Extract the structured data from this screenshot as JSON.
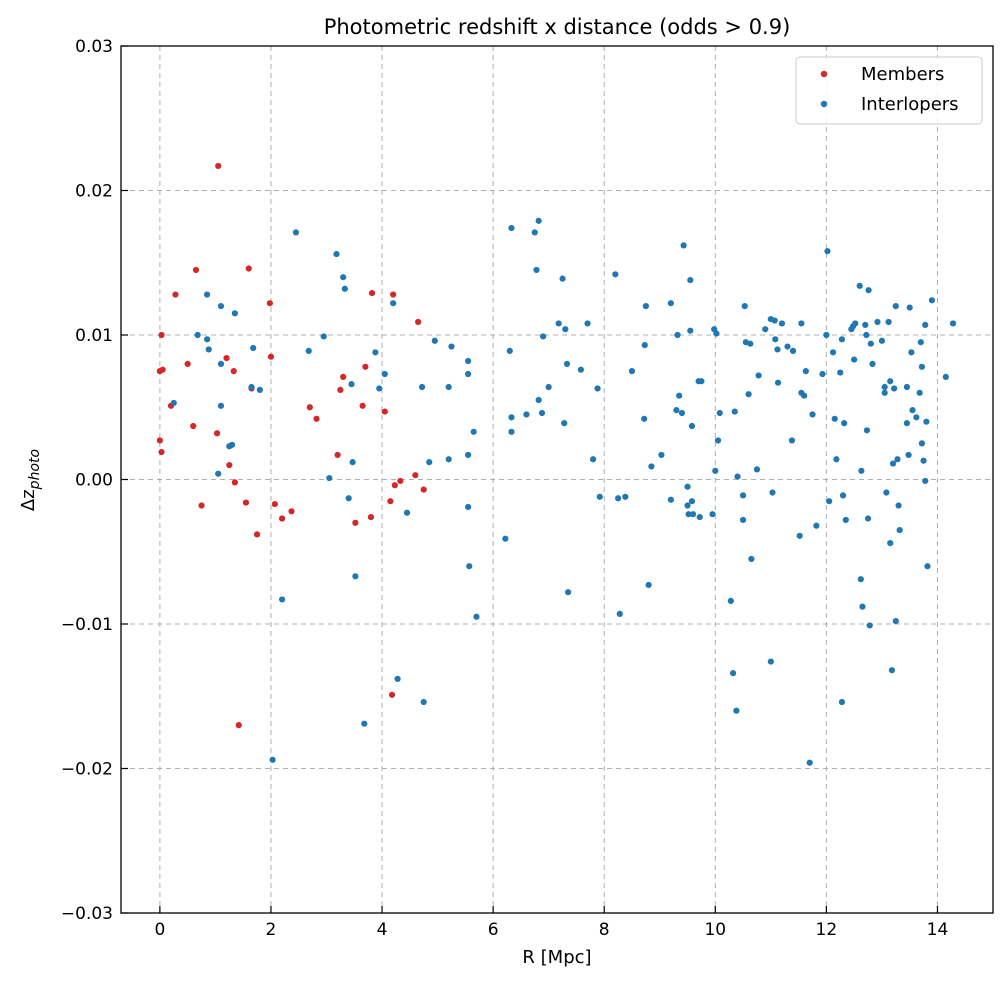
{
  "chart_data": {
    "type": "scatter",
    "title": "Photometric redshift x distance (odds > 0.9)",
    "xlabel": "R [Mpc]",
    "ylabel_main": "Δz",
    "ylabel_sub": "photo",
    "xlim": [
      -0.7,
      15.0
    ],
    "ylim": [
      -0.03,
      0.03
    ],
    "xticks": [
      0,
      2,
      4,
      6,
      8,
      10,
      12,
      14
    ],
    "yticks": [
      -0.03,
      -0.02,
      -0.01,
      0.0,
      0.01,
      0.02,
      0.03
    ],
    "ytick_labels": [
      "−0.03",
      "−0.02",
      "−0.01",
      "0.00",
      "0.01",
      "0.02",
      "0.03"
    ],
    "xtick_labels": [
      "0",
      "2",
      "4",
      "6",
      "8",
      "10",
      "12",
      "14"
    ],
    "grid": true,
    "legend_position": "top-right",
    "series": [
      {
        "name": "Members",
        "color": "#d62728",
        "points": [
          [
            0.03,
            0.01
          ],
          [
            0.0,
            0.0075
          ],
          [
            0.05,
            0.0076
          ],
          [
            0.0,
            0.0027
          ],
          [
            0.03,
            0.0019
          ],
          [
            0.2,
            0.0051
          ],
          [
            0.28,
            0.0128
          ],
          [
            0.5,
            0.008
          ],
          [
            0.65,
            0.0145
          ],
          [
            0.6,
            0.0037
          ],
          [
            0.75,
            -0.0018
          ],
          [
            1.05,
            0.0217
          ],
          [
            1.03,
            0.0032
          ],
          [
            1.2,
            0.0084
          ],
          [
            1.25,
            0.001
          ],
          [
            1.33,
            0.0075
          ],
          [
            1.35,
            -0.0002
          ],
          [
            1.42,
            -0.017
          ],
          [
            1.55,
            -0.0016
          ],
          [
            1.6,
            0.0146
          ],
          [
            1.65,
            0.0063
          ],
          [
            1.75,
            -0.0038
          ],
          [
            1.98,
            0.0122
          ],
          [
            2.0,
            0.0085
          ],
          [
            2.07,
            -0.0017
          ],
          [
            2.2,
            -0.0027
          ],
          [
            2.37,
            -0.0022
          ],
          [
            2.7,
            0.005
          ],
          [
            2.82,
            0.0042
          ],
          [
            3.2,
            0.0017
          ],
          [
            3.25,
            0.0062
          ],
          [
            3.3,
            0.0071
          ],
          [
            3.52,
            -0.003
          ],
          [
            3.65,
            0.0051
          ],
          [
            3.7,
            0.0078
          ],
          [
            3.8,
            -0.0026
          ],
          [
            3.82,
            0.0129
          ],
          [
            4.05,
            0.0047
          ],
          [
            4.15,
            -0.0015
          ],
          [
            4.2,
            0.0128
          ],
          [
            4.23,
            -0.0004
          ],
          [
            4.33,
            -0.0001
          ],
          [
            4.6,
            0.0003
          ],
          [
            4.65,
            0.0109
          ],
          [
            4.75,
            -0.0007
          ],
          [
            4.18,
            -0.0149
          ]
        ]
      },
      {
        "name": "Interlopers",
        "color": "#1f77b4",
        "points": [
          [
            0.25,
            0.0053
          ],
          [
            0.68,
            0.01
          ],
          [
            0.85,
            0.0128
          ],
          [
            0.85,
            0.0097
          ],
          [
            0.88,
            0.009
          ],
          [
            1.05,
            0.0004
          ],
          [
            1.1,
            0.012
          ],
          [
            1.1,
            0.008
          ],
          [
            1.1,
            0.0051
          ],
          [
            1.25,
            0.0023
          ],
          [
            1.3,
            0.0024
          ],
          [
            1.35,
            0.0115
          ],
          [
            1.65,
            0.0064
          ],
          [
            1.68,
            0.0091
          ],
          [
            1.8,
            0.0062
          ],
          [
            2.03,
            -0.0194
          ],
          [
            2.2,
            -0.0083
          ],
          [
            2.45,
            0.0171
          ],
          [
            2.68,
            0.0089
          ],
          [
            2.95,
            0.0099
          ],
          [
            3.05,
            0.0001
          ],
          [
            3.18,
            0.0156
          ],
          [
            3.3,
            0.014
          ],
          [
            3.33,
            0.0132
          ],
          [
            3.4,
            -0.0013
          ],
          [
            3.45,
            0.0066
          ],
          [
            3.47,
            0.0012
          ],
          [
            3.52,
            -0.0067
          ],
          [
            3.68,
            -0.0169
          ],
          [
            3.88,
            0.0088
          ],
          [
            3.95,
            0.0063
          ],
          [
            4.05,
            0.0073
          ],
          [
            4.2,
            0.0122
          ],
          [
            4.28,
            -0.0138
          ],
          [
            4.45,
            -0.0023
          ],
          [
            4.72,
            0.0064
          ],
          [
            4.75,
            -0.0154
          ],
          [
            4.85,
            0.0012
          ],
          [
            4.95,
            0.0096
          ],
          [
            5.2,
            0.0064
          ],
          [
            5.2,
            0.0014
          ],
          [
            5.25,
            0.0092
          ],
          [
            5.55,
            0.0082
          ],
          [
            5.55,
            0.0073
          ],
          [
            5.55,
            0.0017
          ],
          [
            5.55,
            -0.0019
          ],
          [
            5.57,
            -0.006
          ],
          [
            5.65,
            0.0033
          ],
          [
            5.7,
            -0.0095
          ],
          [
            6.22,
            -0.0041
          ],
          [
            6.3,
            0.0089
          ],
          [
            6.33,
            0.0174
          ],
          [
            6.33,
            0.0043
          ],
          [
            6.33,
            0.0033
          ],
          [
            6.6,
            0.0045
          ],
          [
            6.75,
            0.0171
          ],
          [
            6.78,
            0.0145
          ],
          [
            6.82,
            0.0179
          ],
          [
            6.82,
            0.0055
          ],
          [
            6.88,
            0.0046
          ],
          [
            6.9,
            0.0099
          ],
          [
            7.0,
            0.0064
          ],
          [
            7.18,
            0.0108
          ],
          [
            7.25,
            0.0139
          ],
          [
            7.28,
            0.0039
          ],
          [
            7.3,
            0.0104
          ],
          [
            7.33,
            0.008
          ],
          [
            7.35,
            -0.0078
          ],
          [
            7.58,
            0.0076
          ],
          [
            7.7,
            0.0108
          ],
          [
            7.8,
            0.0014
          ],
          [
            7.88,
            0.0063
          ],
          [
            7.92,
            -0.0012
          ],
          [
            8.2,
            0.0142
          ],
          [
            8.25,
            -0.0013
          ],
          [
            8.28,
            -0.0093
          ],
          [
            8.38,
            -0.0012
          ],
          [
            8.5,
            0.0075
          ],
          [
            8.72,
            0.0042
          ],
          [
            8.73,
            0.0093
          ],
          [
            8.75,
            0.012
          ],
          [
            8.8,
            -0.0073
          ],
          [
            8.85,
            0.0009
          ],
          [
            9.03,
            0.0017
          ],
          [
            9.2,
            0.0122
          ],
          [
            9.2,
            -0.0014
          ],
          [
            9.3,
            0.0048
          ],
          [
            9.32,
            0.01
          ],
          [
            9.35,
            0.0058
          ],
          [
            9.4,
            0.0046
          ],
          [
            9.43,
            0.0162
          ],
          [
            9.5,
            -0.0018
          ],
          [
            9.5,
            -0.0005
          ],
          [
            9.52,
            -0.0024
          ],
          [
            9.55,
            0.0138
          ],
          [
            9.55,
            0.0103
          ],
          [
            9.58,
            0.0037
          ],
          [
            9.58,
            -0.0015
          ],
          [
            9.6,
            -0.0024
          ],
          [
            9.7,
            0.0068
          ],
          [
            9.72,
            -0.0026
          ],
          [
            9.75,
            0.0068
          ],
          [
            9.95,
            -0.0024
          ],
          [
            9.98,
            0.0104
          ],
          [
            10.0,
            0.0006
          ],
          [
            10.02,
            0.0101
          ],
          [
            10.05,
            0.0027
          ],
          [
            10.08,
            0.0046
          ],
          [
            10.28,
            -0.0084
          ],
          [
            10.32,
            -0.0134
          ],
          [
            10.35,
            0.0047
          ],
          [
            10.38,
            -0.016
          ],
          [
            10.4,
            0.0002
          ],
          [
            10.5,
            -0.0011
          ],
          [
            10.5,
            -0.0028
          ],
          [
            10.53,
            0.012
          ],
          [
            10.55,
            0.0095
          ],
          [
            10.6,
            0.0059
          ],
          [
            10.63,
            0.0094
          ],
          [
            10.65,
            -0.0055
          ],
          [
            10.75,
            0.0007
          ],
          [
            10.78,
            0.0072
          ],
          [
            10.9,
            0.0104
          ],
          [
            11.0,
            0.0111
          ],
          [
            11.0,
            -0.0126
          ],
          [
            11.03,
            -0.0009
          ],
          [
            11.07,
            0.011
          ],
          [
            11.08,
            0.0097
          ],
          [
            11.12,
            0.009
          ],
          [
            11.13,
            0.0067
          ],
          [
            11.2,
            0.0108
          ],
          [
            11.3,
            0.0092
          ],
          [
            11.38,
            0.0027
          ],
          [
            11.4,
            0.0089
          ],
          [
            11.52,
            -0.0039
          ],
          [
            11.55,
            0.0108
          ],
          [
            11.55,
            0.006
          ],
          [
            11.6,
            0.0058
          ],
          [
            11.63,
            0.0075
          ],
          [
            11.7,
            -0.0196
          ],
          [
            11.75,
            0.0045
          ],
          [
            11.82,
            -0.0032
          ],
          [
            11.93,
            0.0073
          ],
          [
            12.0,
            0.01
          ],
          [
            12.02,
            0.0158
          ],
          [
            12.05,
            -0.0015
          ],
          [
            12.12,
            0.0088
          ],
          [
            12.15,
            0.0042
          ],
          [
            12.18,
            0.0014
          ],
          [
            12.25,
            0.0074
          ],
          [
            12.28,
            0.0097
          ],
          [
            12.28,
            -0.0154
          ],
          [
            12.3,
            -0.0011
          ],
          [
            12.32,
            0.0039
          ],
          [
            12.35,
            -0.0028
          ],
          [
            12.45,
            0.0104
          ],
          [
            12.48,
            0.0106
          ],
          [
            12.5,
            0.0083
          ],
          [
            12.52,
            0.0108
          ],
          [
            12.6,
            0.0134
          ],
          [
            12.62,
            -0.0069
          ],
          [
            12.63,
            0.0006
          ],
          [
            12.65,
            -0.0088
          ],
          [
            12.7,
            0.0107
          ],
          [
            12.72,
            0.01
          ],
          [
            12.73,
            0.0034
          ],
          [
            12.75,
            -0.0027
          ],
          [
            12.76,
            0.0131
          ],
          [
            12.78,
            -0.0101
          ],
          [
            12.8,
            0.0094
          ],
          [
            12.83,
            0.008
          ],
          [
            12.92,
            0.0109
          ],
          [
            13.0,
            0.0096
          ],
          [
            13.05,
            0.0064
          ],
          [
            13.05,
            0.006
          ],
          [
            13.08,
            -0.0009
          ],
          [
            13.12,
            0.0109
          ],
          [
            13.15,
            -0.0044
          ],
          [
            13.15,
            0.0068
          ],
          [
            13.18,
            -0.0132
          ],
          [
            13.2,
            0.0011
          ],
          [
            13.22,
            0.0063
          ],
          [
            13.25,
            0.012
          ],
          [
            13.25,
            -0.0098
          ],
          [
            13.28,
            0.0014
          ],
          [
            13.3,
            -0.0018
          ],
          [
            13.32,
            -0.0035
          ],
          [
            13.45,
            0.0064
          ],
          [
            13.45,
            0.0039
          ],
          [
            13.48,
            0.0017
          ],
          [
            13.5,
            0.0119
          ],
          [
            13.53,
            0.0088
          ],
          [
            13.55,
            0.0048
          ],
          [
            13.62,
            0.0043
          ],
          [
            13.68,
            0.006
          ],
          [
            13.7,
            0.0095
          ],
          [
            13.72,
            0.0078
          ],
          [
            13.72,
            0.0025
          ],
          [
            13.75,
            0.0013
          ],
          [
            13.78,
            0.0107
          ],
          [
            13.78,
            -0.0001
          ],
          [
            13.8,
            0.004
          ],
          [
            13.82,
            -0.006
          ],
          [
            13.9,
            0.0124
          ],
          [
            14.15,
            0.0071
          ],
          [
            14.28,
            0.0108
          ]
        ]
      }
    ]
  }
}
